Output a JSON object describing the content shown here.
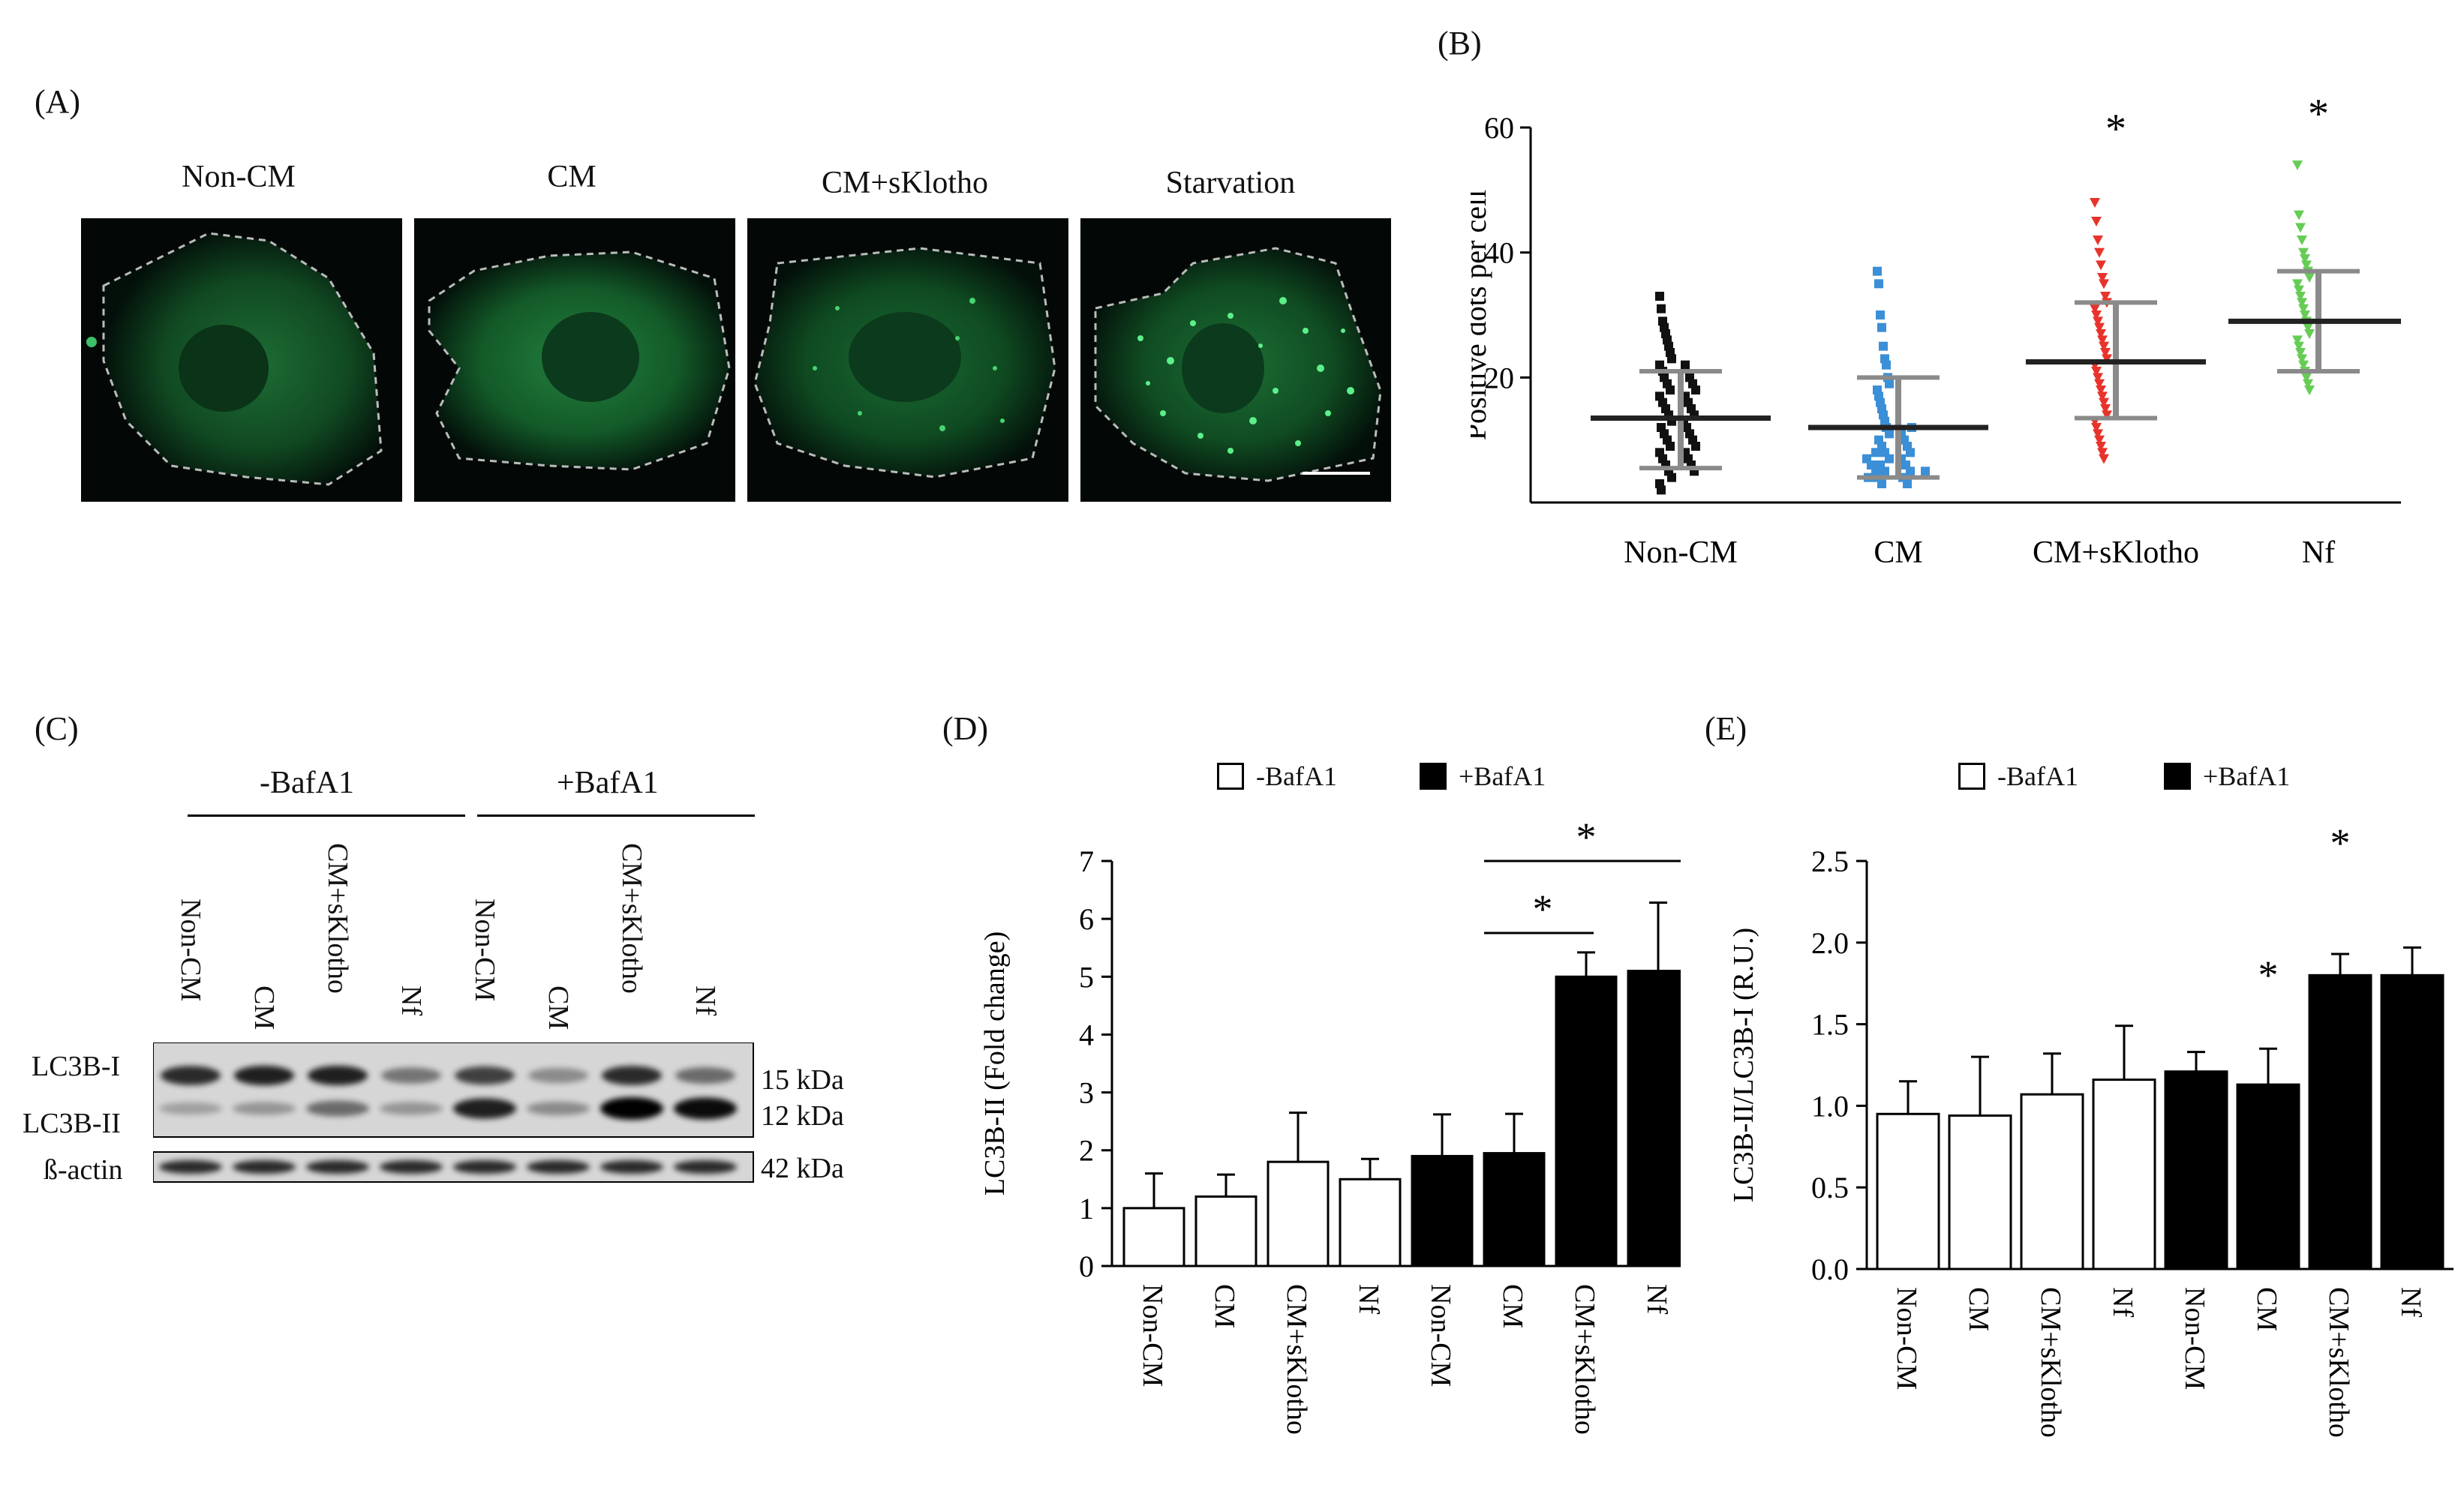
{
  "panels": {
    "a": "(A)",
    "b": "(B)",
    "c": "(C)",
    "d": "(D)",
    "e": "(E)"
  },
  "micrographs": [
    {
      "title": "Non-CM",
      "dots": "sparse"
    },
    {
      "title": "CM",
      "dots": "sparse"
    },
    {
      "title": "CM+sKlotho",
      "dots": "moderate"
    },
    {
      "title": "Starvation",
      "dots": "many"
    }
  ],
  "colors": {
    "fluorescence": "#2fbf5a",
    "non_cm": "#111111",
    "cm": "#3b8fd6",
    "cm_sklotho": "#e8332b",
    "nf": "#66cc55",
    "bar_minus": "#ffffff",
    "bar_plus": "#000000"
  },
  "chart_data": [
    {
      "panel": "(B)",
      "type": "scatter",
      "ylabel": "Positive dots per cell",
      "yticks": [
        "20",
        "40",
        "60"
      ],
      "ylim": [
        0,
        62
      ],
      "categories": [
        "Non-CM",
        "CM",
        "CM+sKlotho",
        "Nf"
      ],
      "annotations": [
        "",
        "",
        "*",
        "*"
      ],
      "summary": [
        {
          "name": "Non-CM",
          "mean": 13.5,
          "sd_low": 5.5,
          "sd_high": 21
        },
        {
          "name": "CM",
          "mean": 12,
          "sd_low": 4,
          "sd_high": 20
        },
        {
          "name": "CM+sKlotho",
          "mean": 22.5,
          "sd_low": 13.5,
          "sd_high": 32
        },
        {
          "name": "Nf",
          "mean": 29,
          "sd_low": 21,
          "sd_high": 37
        }
      ],
      "points": [
        [
          33,
          31,
          29,
          28,
          27,
          26,
          25,
          24,
          23,
          22,
          22,
          21,
          20,
          20,
          19,
          19,
          18,
          18,
          17,
          17,
          16,
          16,
          15,
          15,
          14,
          14,
          13,
          13,
          12,
          12,
          11,
          11,
          10,
          10,
          9,
          9,
          8,
          8,
          7,
          7,
          6,
          6,
          5,
          5,
          4,
          3,
          2
        ],
        [
          37,
          35,
          30,
          28,
          25,
          23,
          22,
          20,
          19,
          18,
          17,
          16,
          15,
          14,
          13,
          12,
          12,
          11,
          11,
          10,
          10,
          9,
          9,
          8,
          8,
          8,
          7,
          7,
          7,
          6,
          6,
          6,
          5,
          5,
          5,
          5,
          4,
          4,
          4,
          3,
          3
        ],
        [
          48,
          45,
          42,
          40,
          38,
          36,
          35,
          33,
          32,
          31,
          30,
          29,
          28,
          27,
          26,
          25,
          24,
          23,
          22,
          21,
          20,
          19,
          18,
          17,
          16,
          15,
          14,
          13,
          12,
          11,
          10,
          9,
          8,
          7
        ],
        [
          54,
          46,
          44,
          42,
          40,
          39,
          38,
          37,
          36,
          35,
          34,
          33,
          32,
          31,
          30,
          29,
          28,
          27,
          26,
          25,
          24,
          23,
          22,
          21,
          20,
          19,
          18
        ]
      ]
    },
    {
      "panel": "(D)",
      "type": "bar",
      "ylabel": "LC3B-II (Fold change)",
      "yticks": [
        "0",
        "1",
        "2",
        "3",
        "4",
        "5",
        "6",
        "7"
      ],
      "ylim": [
        0,
        7
      ],
      "categories": [
        "Non-CM",
        "CM",
        "CM+sKlotho",
        "Nf",
        "Non-CM",
        "CM",
        "CM+sKlotho",
        "Nf"
      ],
      "values": [
        1.0,
        1.2,
        1.8,
        1.5,
        1.9,
        1.95,
        5.0,
        5.1
      ],
      "errors": [
        0.6,
        0.38,
        0.85,
        0.35,
        0.72,
        0.68,
        0.42,
        1.18
      ],
      "groups": [
        "-BafA1",
        "-BafA1",
        "-BafA1",
        "-BafA1",
        "+BafA1",
        "+BafA1",
        "+BafA1",
        "+BafA1"
      ],
      "legend": [
        "-BafA1",
        "+BafA1"
      ],
      "significance": [
        "*",
        "*"
      ]
    },
    {
      "panel": "(E)",
      "type": "bar",
      "ylabel": "LC3B-II/LC3B-I (R.U.)",
      "yticks": [
        "0.0",
        "0.5",
        "1.0",
        "1.5",
        "2.0",
        "2.5"
      ],
      "ylim": [
        0,
        2.5
      ],
      "categories": [
        "Non-CM",
        "CM",
        "CM+sKlotho",
        "Nf",
        "Non-CM",
        "CM",
        "CM+sKlotho",
        "Nf"
      ],
      "values": [
        0.95,
        0.94,
        1.07,
        1.16,
        1.21,
        1.13,
        1.8,
        1.8
      ],
      "errors": [
        0.2,
        0.36,
        0.25,
        0.33,
        0.12,
        0.22,
        0.13,
        0.17
      ],
      "groups": [
        "-BafA1",
        "-BafA1",
        "-BafA1",
        "-BafA1",
        "+BafA1",
        "+BafA1",
        "+BafA1",
        "+BafA1"
      ],
      "legend": [
        "-BafA1",
        "+BafA1"
      ],
      "annotations": [
        "",
        "",
        "",
        "",
        "",
        "*",
        "*",
        ""
      ]
    }
  ],
  "blot": {
    "group_minus": "-BafA1",
    "group_plus": "+BafA1",
    "lanes": [
      "Non-CM",
      "CM",
      "CM+sKlotho",
      "Nf",
      "Non-CM",
      "CM",
      "CM+sKlotho",
      "Nf"
    ],
    "rows": [
      "LC3B-I",
      "LC3B-II",
      "ß-actin"
    ],
    "kda": [
      "15 kDa",
      "12 kDa",
      "42 kDa"
    ],
    "lc3b_i_intensity": [
      0.8,
      0.85,
      0.85,
      0.45,
      0.7,
      0.35,
      0.8,
      0.5
    ],
    "lc3b_ii_intensity": [
      0.25,
      0.3,
      0.5,
      0.3,
      0.85,
      0.35,
      1.0,
      0.95
    ],
    "actin_intensity": [
      0.8,
      0.8,
      0.8,
      0.8,
      0.8,
      0.8,
      0.8,
      0.8
    ]
  }
}
